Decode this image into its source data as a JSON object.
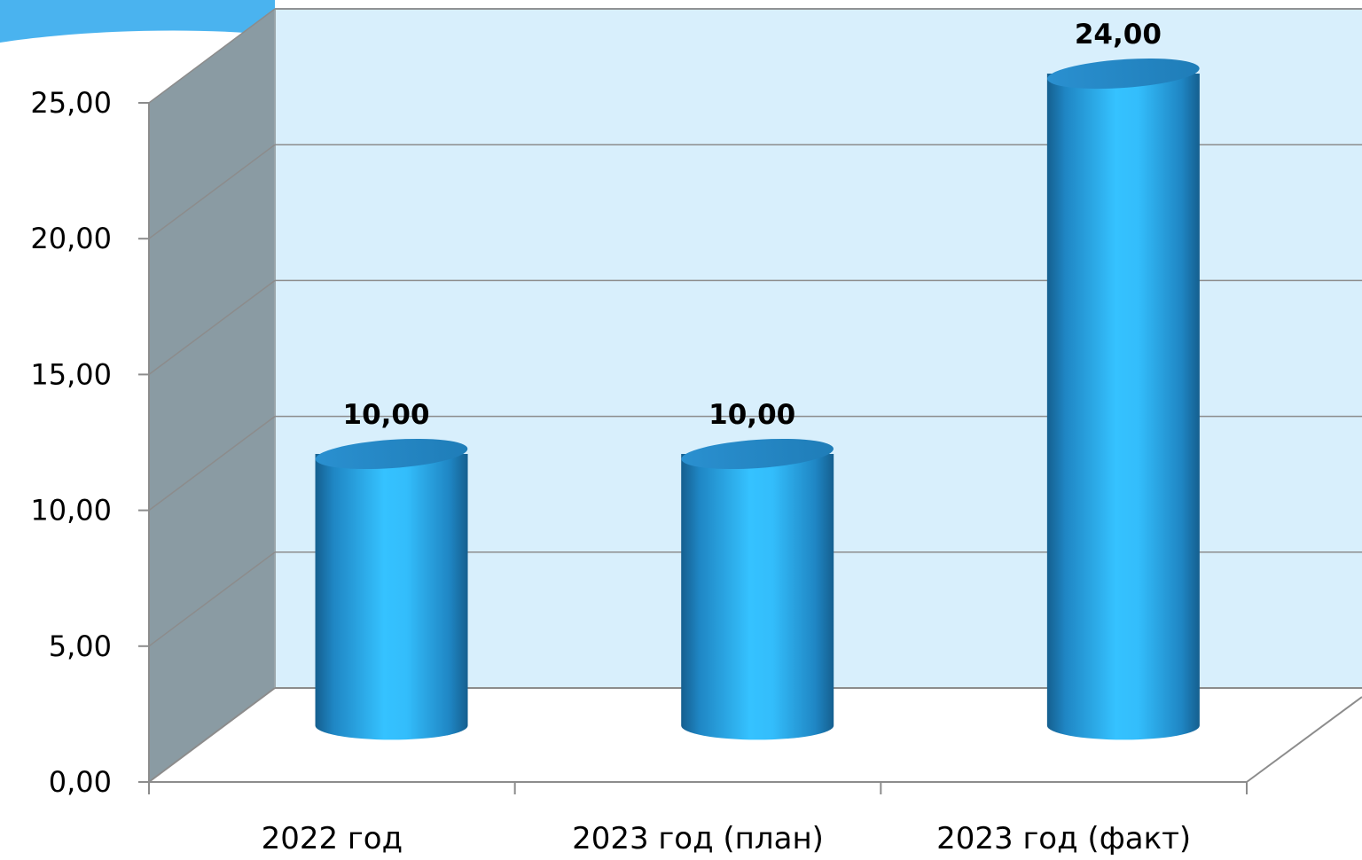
{
  "chart_data": {
    "type": "bar",
    "style": "3d-cylinder",
    "categories": [
      "2022 год",
      "2023 год (план)",
      "2023 год (факт)"
    ],
    "values": [
      10.0,
      10.0,
      24.0
    ],
    "data_labels": [
      "10,00",
      "10,00",
      "24,00"
    ],
    "y_ticks": [
      "0,00",
      "5,00",
      "10,00",
      "15,00",
      "20,00",
      "25,00"
    ],
    "ylim": [
      0,
      25
    ],
    "title": "",
    "xlabel": "",
    "ylabel": "",
    "grid": true,
    "legend": "none",
    "colors": {
      "bar": "#2ea6e8",
      "bar_dark": "#1a6ea3",
      "bar_light": "#35c2ff",
      "bar_top": "#2a8ccc",
      "back_wall": "#d8effc",
      "side_wall": "#8a9ba3",
      "grid": "#8c8c8c",
      "header_accent": "#4ab3ef"
    }
  }
}
